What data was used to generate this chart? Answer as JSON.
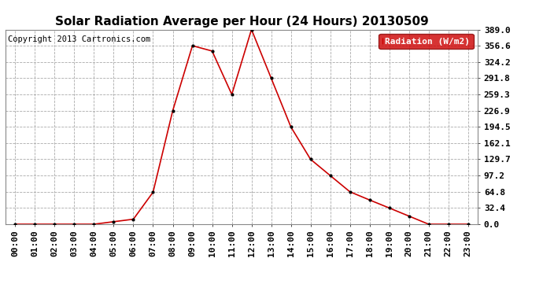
{
  "title": "Solar Radiation Average per Hour (24 Hours) 20130509",
  "copyright": "Copyright 2013 Cartronics.com",
  "legend_label": "Radiation (W/m2)",
  "hours": [
    "00:00",
    "01:00",
    "02:00",
    "03:00",
    "04:00",
    "05:00",
    "06:00",
    "07:00",
    "08:00",
    "09:00",
    "10:00",
    "11:00",
    "12:00",
    "13:00",
    "14:00",
    "15:00",
    "16:00",
    "17:00",
    "18:00",
    "19:00",
    "20:00",
    "21:00",
    "22:00",
    "23:00"
  ],
  "values": [
    0.0,
    0.0,
    0.0,
    0.0,
    0.0,
    5.0,
    10.0,
    64.0,
    226.9,
    356.6,
    346.0,
    259.3,
    389.0,
    291.8,
    194.5,
    129.7,
    97.2,
    64.8,
    48.4,
    32.4,
    16.2,
    0.0,
    0.0,
    0.0
  ],
  "ylim": [
    0.0,
    389.0
  ],
  "yticks": [
    0.0,
    32.4,
    64.8,
    97.2,
    129.7,
    162.1,
    194.5,
    226.9,
    259.3,
    291.8,
    324.2,
    356.6,
    389.0
  ],
  "ytick_labels": [
    "0.0",
    "32.4",
    "64.8",
    "97.2",
    "129.7",
    "162.1",
    "194.5",
    "226.9",
    "259.3",
    "291.8",
    "324.2",
    "356.6",
    "389.0"
  ],
  "line_color": "#cc0000",
  "marker_color": "#000000",
  "background_color": "#ffffff",
  "grid_color": "#aaaaaa",
  "legend_bg": "#cc0000",
  "legend_text_color": "#ffffff",
  "title_fontsize": 11,
  "copyright_fontsize": 7.5,
  "tick_fontsize": 8,
  "border_color": "#888888"
}
